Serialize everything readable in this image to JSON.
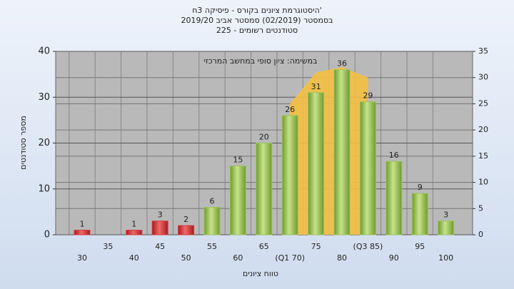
{
  "chart_data": {
    "type": "bar",
    "title": "היסטוגרמת ציונים בקורס - פיסיקה 3ח'",
    "subtitle": "בסמסטר  (02/2019)  סמסטר אביב 2019/20",
    "subtitle2": "סטודנטים רשומים - 225",
    "annotation": "במשימה: ציון סופי במחשב המרכזי",
    "y_label": "מספר סטודנטים",
    "x_label": "טווח ציונים",
    "categories": [
      "30",
      "35",
      "40",
      "45",
      "50",
      "55",
      "60",
      "65",
      "(Q1 70)",
      "75",
      "80",
      "(Q3 85)",
      "90",
      "95",
      "100"
    ],
    "values": [
      1,
      0,
      1,
      3,
      2,
      6,
      15,
      20,
      26,
      31,
      36,
      29,
      16,
      9,
      3
    ],
    "colors": [
      "#d9383a",
      "#d9383a",
      "#d9383a",
      "#d9383a",
      "#d9383a",
      "#9cc45a",
      "#9cc45a",
      "#9cc45a",
      "#9cc45a",
      "#9cc45a",
      "#9cc45a",
      "#9cc45a",
      "#9cc45a",
      "#9cc45a",
      "#9cc45a"
    ],
    "area": {
      "color": "#f5c043",
      "axis": "y2",
      "values": [
        null,
        null,
        null,
        null,
        null,
        null,
        null,
        null,
        25,
        31,
        32,
        30,
        null,
        null,
        null
      ]
    },
    "ylim": [
      0,
      40
    ],
    "yticks": [
      0,
      10,
      20,
      30,
      40
    ],
    "y2lim": [
      0,
      35
    ],
    "y2ticks": [
      0,
      5,
      10,
      15,
      20,
      25,
      30,
      35
    ],
    "grid": true
  }
}
